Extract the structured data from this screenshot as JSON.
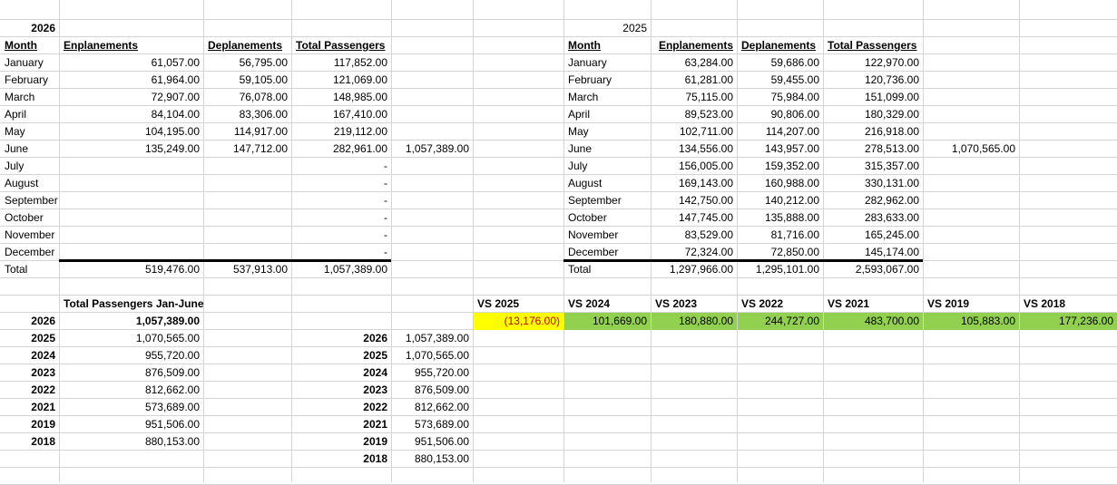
{
  "headers": {
    "month": "Month",
    "enpl": "Enplanements",
    "depl": "Deplanements",
    "total": "Total Passengers",
    "total_label": "Total",
    "jan_june": "Total Passengers Jan-June"
  },
  "y2026": {
    "year": "2026",
    "rows": [
      {
        "month": "January",
        "enpl": "61,057.00",
        "depl": "56,795.00",
        "total": "117,852.00"
      },
      {
        "month": "February",
        "enpl": "61,964.00",
        "depl": "59,105.00",
        "total": "121,069.00"
      },
      {
        "month": "March",
        "enpl": "72,907.00",
        "depl": "76,078.00",
        "total": "148,985.00"
      },
      {
        "month": "April",
        "enpl": "84,104.00",
        "depl": "83,306.00",
        "total": "167,410.00"
      },
      {
        "month": "May",
        "enpl": "104,195.00",
        "depl": "114,917.00",
        "total": "219,112.00"
      },
      {
        "month": "June",
        "enpl": "135,249.00",
        "depl": "147,712.00",
        "total": "282,961.00"
      },
      {
        "month": "July",
        "enpl": "",
        "depl": "",
        "total": "-"
      },
      {
        "month": "August",
        "enpl": "",
        "depl": "",
        "total": "-"
      },
      {
        "month": "September",
        "enpl": "",
        "depl": "",
        "total": "-"
      },
      {
        "month": "October",
        "enpl": "",
        "depl": "",
        "total": "-"
      },
      {
        "month": "November",
        "enpl": "",
        "depl": "",
        "total": "-"
      },
      {
        "month": "December",
        "enpl": "",
        "depl": "",
        "total": "-"
      }
    ],
    "ytd": "1,057,389.00",
    "totals": {
      "enpl": "519,476.00",
      "depl": "537,913.00",
      "total": "1,057,389.00"
    }
  },
  "y2025": {
    "year": "2025",
    "rows": [
      {
        "month": "January",
        "enpl": "63,284.00",
        "depl": "59,686.00",
        "total": "122,970.00"
      },
      {
        "month": "February",
        "enpl": "61,281.00",
        "depl": "59,455.00",
        "total": "120,736.00"
      },
      {
        "month": "March",
        "enpl": "75,115.00",
        "depl": "75,984.00",
        "total": "151,099.00"
      },
      {
        "month": "April",
        "enpl": "89,523.00",
        "depl": "90,806.00",
        "total": "180,329.00"
      },
      {
        "month": "May",
        "enpl": "102,711.00",
        "depl": "114,207.00",
        "total": "216,918.00"
      },
      {
        "month": "June",
        "enpl": "134,556.00",
        "depl": "143,957.00",
        "total": "278,513.00"
      },
      {
        "month": "July",
        "enpl": "156,005.00",
        "depl": "159,352.00",
        "total": "315,357.00"
      },
      {
        "month": "August",
        "enpl": "169,143.00",
        "depl": "160,988.00",
        "total": "330,131.00"
      },
      {
        "month": "September",
        "enpl": "142,750.00",
        "depl": "140,212.00",
        "total": "282,962.00"
      },
      {
        "month": "October",
        "enpl": "147,745.00",
        "depl": "135,888.00",
        "total": "283,633.00"
      },
      {
        "month": "November",
        "enpl": "83,529.00",
        "depl": "81,716.00",
        "total": "165,245.00"
      },
      {
        "month": "December",
        "enpl": "72,324.00",
        "depl": "72,850.00",
        "total": "145,174.00"
      }
    ],
    "ytd": "1,070,565.00",
    "totals": {
      "enpl": "1,297,966.00",
      "depl": "1,295,101.00",
      "total": "2,593,067.00"
    }
  },
  "jan_june": [
    {
      "year": "2026",
      "value": "1,057,389.00"
    },
    {
      "year": "2025",
      "value": "1,070,565.00"
    },
    {
      "year": "2024",
      "value": "955,720.00"
    },
    {
      "year": "2023",
      "value": "876,509.00"
    },
    {
      "year": "2022",
      "value": "812,662.00"
    },
    {
      "year": "2021",
      "value": "573,689.00"
    },
    {
      "year": "2019",
      "value": "951,506.00"
    },
    {
      "year": "2018",
      "value": "880,153.00"
    }
  ],
  "comparisons": [
    {
      "label": "VS 2025",
      "value": "(13,176.00)",
      "fill": "#ffff00",
      "negative": true
    },
    {
      "label": "VS 2024",
      "value": "101,669.00",
      "fill": "#92d050",
      "negative": false
    },
    {
      "label": "VS 2023",
      "value": "180,880.00",
      "fill": "#92d050",
      "negative": false
    },
    {
      "label": "VS 2022",
      "value": "244,727.00",
      "fill": "#92d050",
      "negative": false
    },
    {
      "label": "VS 2021",
      "value": "483,700.00",
      "fill": "#92d050",
      "negative": false
    },
    {
      "label": "VS 2019",
      "value": "105,883.00",
      "fill": "#92d050",
      "negative": false
    },
    {
      "label": "VS 2018",
      "value": "177,236.00",
      "fill": "#92d050",
      "negative": false
    }
  ]
}
